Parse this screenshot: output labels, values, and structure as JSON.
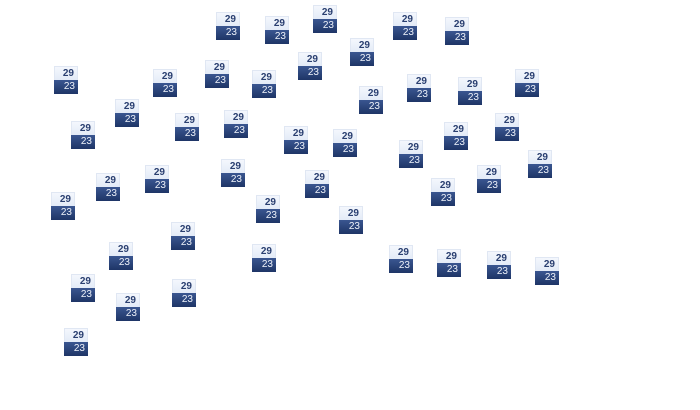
{
  "icon": {
    "name": "calendar-icon",
    "top_label": "29",
    "bottom_label": "23",
    "count": 45
  },
  "colors": {
    "header": "#e3ebf7",
    "body": "#2a4478",
    "top_text": "#2a3f70"
  }
}
